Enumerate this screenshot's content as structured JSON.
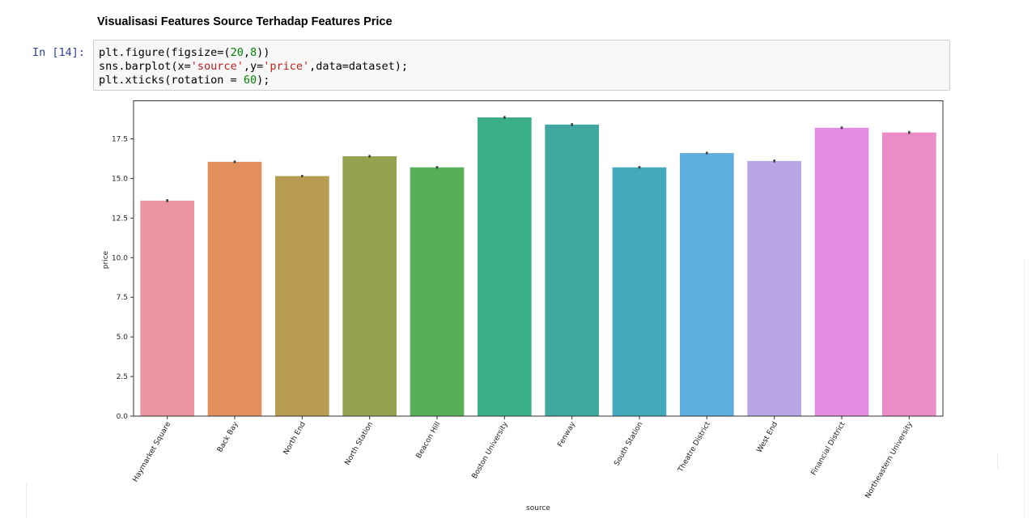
{
  "markdown": {
    "heading": "Visualisasi Features Source Terhadap Features Price"
  },
  "cell": {
    "prompt": "In [14]:",
    "code_lines": [
      [
        {
          "t": "plt.figure(figsize=(",
          "c": ""
        },
        {
          "t": "20",
          "c": "num"
        },
        {
          "t": ",",
          "c": ""
        },
        {
          "t": "8",
          "c": "num"
        },
        {
          "t": "))",
          "c": ""
        }
      ],
      [
        {
          "t": "sns.barplot(x=",
          "c": ""
        },
        {
          "t": "'source'",
          "c": "str"
        },
        {
          "t": ",y=",
          "c": ""
        },
        {
          "t": "'price'",
          "c": "str"
        },
        {
          "t": ",data=dataset);",
          "c": ""
        }
      ],
      [
        {
          "t": "plt.xticks(rotation = ",
          "c": ""
        },
        {
          "t": "60",
          "c": "num"
        },
        {
          "t": ");",
          "c": ""
        }
      ]
    ]
  },
  "chart_data": {
    "type": "bar",
    "xlabel": "source",
    "ylabel": "price",
    "ylim": [
      0,
      19.9
    ],
    "yticks": [
      0.0,
      2.5,
      5.0,
      7.5,
      10.0,
      12.5,
      15.0,
      17.5
    ],
    "ytick_labels": [
      "0.0",
      "2.5",
      "5.0",
      "7.5",
      "10.0",
      "12.5",
      "15.0",
      "17.5"
    ],
    "xtick_rotation": 60,
    "categories": [
      "Haymarket Square",
      "Back Bay",
      "North End",
      "North Station",
      "Beacon Hill",
      "Boston University",
      "Fenway",
      "South Station",
      "Theatre District",
      "West End",
      "Financial District",
      "Northeastern University"
    ],
    "values": [
      13.6,
      16.05,
      15.15,
      16.4,
      15.7,
      18.85,
      18.4,
      15.7,
      16.6,
      16.1,
      18.2,
      17.9
    ],
    "errors": [
      0.09,
      0.08,
      0.07,
      0.08,
      0.08,
      0.09,
      0.09,
      0.08,
      0.08,
      0.09,
      0.08,
      0.09
    ],
    "colors": [
      "#eb93a1",
      "#e38f5b",
      "#b89c52",
      "#96a24f",
      "#59ae58",
      "#3ab088",
      "#3fa8a0",
      "#43a9bb",
      "#5daedd",
      "#b7a5e5",
      "#e28de2",
      "#ea8dc6"
    ],
    "grid": false,
    "legend": "none"
  }
}
